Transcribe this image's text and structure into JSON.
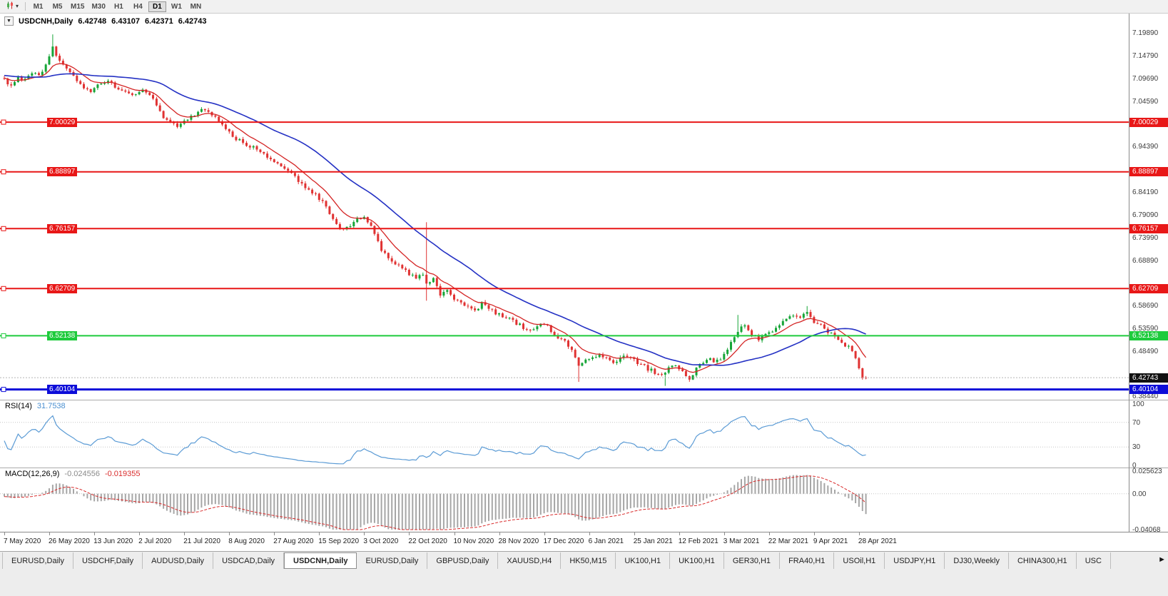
{
  "toolbar": {
    "timeframes": [
      "M1",
      "M5",
      "M15",
      "M30",
      "H1",
      "H4",
      "D1",
      "W1",
      "MN"
    ],
    "active_timeframe": "D1",
    "dropdown_glyph": "▾"
  },
  "chart": {
    "dropdown_glyph": "▼",
    "symbol_label": "USDCNH,Daily",
    "open": "6.42748",
    "high": "6.43107",
    "low": "6.42371",
    "close": "6.42743"
  },
  "price_axis": {
    "labels": [
      "7.19890",
      "7.14790",
      "7.09690",
      "7.04590",
      "6.94390",
      "6.84190",
      "6.79090",
      "6.73990",
      "6.68890",
      "6.58690",
      "6.53590",
      "6.48490",
      "6.38440"
    ]
  },
  "hlines": [
    {
      "label": "7.00029",
      "price": 7.00029,
      "color": "#e81717",
      "thickness": 2
    },
    {
      "label": "6.88897",
      "price": 6.88897,
      "color": "#e81717",
      "thickness": 2
    },
    {
      "label": "6.76157",
      "price": 6.76157,
      "color": "#e81717",
      "thickness": 2
    },
    {
      "label": "6.62709",
      "price": 6.62709,
      "color": "#e81717",
      "thickness": 2
    },
    {
      "label": "6.52138",
      "price": 6.52138,
      "color": "#1ecb3c",
      "thickness": 2
    },
    {
      "label": "6.40104",
      "price": 6.40104,
      "color": "#0d0dd9",
      "thickness": 3
    }
  ],
  "current_price": {
    "label": "6.42743",
    "price": 6.42743,
    "badge_color": "#111111"
  },
  "rsi": {
    "name": "RSI(14)",
    "value": "31.7538",
    "line_color": "#5b9bd5",
    "scale_labels": [
      "100",
      "70",
      "30",
      "0"
    ],
    "level_lines": [
      70,
      30
    ]
  },
  "macd": {
    "name": "MACD(12,26,9)",
    "value_main": "-0.024556",
    "value_signal": "-0.019355",
    "hist_color": "#a6a6a6",
    "signal_color": "#d92b2b",
    "scale_labels": [
      "0.025623",
      "0.00",
      "-0.04068"
    ]
  },
  "time_axis": [
    "7 May 2020",
    "26 May 2020",
    "13 Jun 2020",
    "2 Jul 2020",
    "21 Jul 2020",
    "8 Aug 2020",
    "27 Aug 2020",
    "15 Sep 2020",
    "3 Oct 2020",
    "22 Oct 2020",
    "10 Nov 2020",
    "28 Nov 2020",
    "17 Dec 2020",
    "6 Jan 2021",
    "25 Jan 2021",
    "12 Feb 2021",
    "3 Mar 2021",
    "22 Mar 2021",
    "9 Apr 2021",
    "28 Apr 2021"
  ],
  "tabs": {
    "items": [
      "EURUSD,Daily",
      "USDCHF,Daily",
      "AUDUSD,Daily",
      "USDCAD,Daily",
      "USDCNH,Daily",
      "EURUSD,Daily",
      "GBPUSD,Daily",
      "XAUUSD,H4",
      "HK50,M15",
      "UK100,H1",
      "UK100,H1",
      "GER30,H1",
      "FRA40,H1",
      "USOil,H1",
      "USDJPY,H1",
      "DJ30,Weekly",
      "CHINA300,H1",
      "USC"
    ],
    "active_index": 4,
    "scroll_glyph": "►"
  },
  "chart_data": {
    "type": "candlestick",
    "symbol": "USDCNH",
    "period": "Daily",
    "bars": 250,
    "y_range": [
      6.3844,
      7.1989
    ],
    "x_labels_every_bars": 13,
    "up_color": "#16a537",
    "down_color": "#e03232",
    "ohlc_last": {
      "open": 6.42748,
      "high": 6.43107,
      "low": 6.42371,
      "close": 6.42743
    },
    "support_resistance": [
      7.00029,
      6.88897,
      6.76157,
      6.62709,
      6.52138,
      6.40104
    ],
    "moving_averages": [
      {
        "type": "ema",
        "period": 10,
        "color": "#d42525"
      },
      {
        "type": "sma",
        "period": 34,
        "color": "#2431c4"
      }
    ],
    "indicators": [
      {
        "name": "RSI",
        "params": [
          14
        ],
        "last_value": 31.7538,
        "scale": [
          0,
          100
        ],
        "levels": [
          30,
          70
        ]
      },
      {
        "name": "MACD",
        "params": [
          12,
          26,
          9
        ],
        "last_main": -0.024556,
        "last_signal": -0.019355,
        "scale": [
          -0.04068,
          0.025623
        ]
      }
    ],
    "price_anchors": [
      [
        0,
        7.096
      ],
      [
        2,
        7.082
      ],
      [
        4,
        7.097
      ],
      [
        6,
        7.094
      ],
      [
        8,
        7.112
      ],
      [
        10,
        7.105
      ],
      [
        12,
        7.128
      ],
      [
        13,
        7.152
      ],
      [
        14,
        7.172
      ],
      [
        15,
        7.148
      ],
      [
        16,
        7.136
      ],
      [
        18,
        7.118
      ],
      [
        20,
        7.102
      ],
      [
        22,
        7.088
      ],
      [
        24,
        7.07
      ],
      [
        26,
        7.074
      ],
      [
        28,
        7.088
      ],
      [
        30,
        7.094
      ],
      [
        32,
        7.082
      ],
      [
        34,
        7.072
      ],
      [
        36,
        7.062
      ],
      [
        38,
        7.066
      ],
      [
        40,
        7.07
      ],
      [
        42,
        7.06
      ],
      [
        44,
        7.038
      ],
      [
        46,
        7.012
      ],
      [
        48,
        6.998
      ],
      [
        50,
        6.992
      ],
      [
        52,
        7.0
      ],
      [
        54,
        7.012
      ],
      [
        56,
        7.024
      ],
      [
        58,
        7.028
      ],
      [
        60,
        7.018
      ],
      [
        62,
        7.0
      ],
      [
        64,
        6.986
      ],
      [
        66,
        6.968
      ],
      [
        68,
        6.958
      ],
      [
        70,
        6.948
      ],
      [
        72,
        6.944
      ],
      [
        74,
        6.934
      ],
      [
        76,
        6.92
      ],
      [
        78,
        6.91
      ],
      [
        80,
        6.902
      ],
      [
        82,
        6.892
      ],
      [
        84,
        6.876
      ],
      [
        86,
        6.862
      ],
      [
        88,
        6.848
      ],
      [
        90,
        6.836
      ],
      [
        92,
        6.822
      ],
      [
        94,
        6.795
      ],
      [
        96,
        6.772
      ],
      [
        98,
        6.758
      ],
      [
        100,
        6.77
      ],
      [
        102,
        6.782
      ],
      [
        104,
        6.787
      ],
      [
        106,
        6.772
      ],
      [
        107,
        6.748
      ],
      [
        109,
        6.715
      ],
      [
        111,
        6.697
      ],
      [
        113,
        6.683
      ],
      [
        115,
        6.671
      ],
      [
        117,
        6.661
      ],
      [
        119,
        6.649
      ],
      [
        121,
        6.657
      ],
      [
        122,
        6.64
      ],
      [
        124,
        6.647
      ],
      [
        126,
        6.615
      ],
      [
        128,
        6.62
      ],
      [
        130,
        6.605
      ],
      [
        132,
        6.595
      ],
      [
        134,
        6.587
      ],
      [
        136,
        6.579
      ],
      [
        138,
        6.593
      ],
      [
        140,
        6.583
      ],
      [
        142,
        6.573
      ],
      [
        144,
        6.565
      ],
      [
        146,
        6.557
      ],
      [
        148,
        6.549
      ],
      [
        150,
        6.539
      ],
      [
        152,
        6.533
      ],
      [
        154,
        6.541
      ],
      [
        156,
        6.549
      ],
      [
        158,
        6.533
      ],
      [
        160,
        6.519
      ],
      [
        162,
        6.507
      ],
      [
        164,
        6.487
      ],
      [
        166,
        6.457
      ],
      [
        168,
        6.465
      ],
      [
        170,
        6.475
      ],
      [
        172,
        6.479
      ],
      [
        174,
        6.471
      ],
      [
        176,
        6.461
      ],
      [
        178,
        6.473
      ],
      [
        180,
        6.477
      ],
      [
        182,
        6.467
      ],
      [
        184,
        6.457
      ],
      [
        186,
        6.447
      ],
      [
        188,
        6.44
      ],
      [
        190,
        6.43
      ],
      [
        192,
        6.452
      ],
      [
        194,
        6.458
      ],
      [
        196,
        6.44
      ],
      [
        198,
        6.424
      ],
      [
        200,
        6.45
      ],
      [
        202,
        6.461
      ],
      [
        204,
        6.467
      ],
      [
        206,
        6.465
      ],
      [
        208,
        6.477
      ],
      [
        210,
        6.503
      ],
      [
        212,
        6.533
      ],
      [
        214,
        6.543
      ],
      [
        216,
        6.523
      ],
      [
        218,
        6.513
      ],
      [
        220,
        6.523
      ],
      [
        222,
        6.533
      ],
      [
        224,
        6.546
      ],
      [
        226,
        6.56
      ],
      [
        228,
        6.57
      ],
      [
        230,
        6.566
      ],
      [
        232,
        6.574
      ],
      [
        234,
        6.554
      ],
      [
        236,
        6.544
      ],
      [
        238,
        6.53
      ],
      [
        240,
        6.518
      ],
      [
        242,
        6.506
      ],
      [
        244,
        6.496
      ],
      [
        245,
        6.486
      ],
      [
        246,
        6.47
      ],
      [
        247,
        6.45
      ],
      [
        248,
        6.43
      ],
      [
        249,
        6.42743
      ]
    ],
    "wick_overrides": [
      {
        "i": 14,
        "h": 7.197
      },
      {
        "i": 122,
        "h": 6.776,
        "l": 6.6
      },
      {
        "i": 166,
        "l": 6.418
      },
      {
        "i": 191,
        "l": 6.409
      },
      {
        "i": 212,
        "h": 6.568
      },
      {
        "i": 232,
        "h": 6.588
      },
      {
        "i": 249,
        "o": 6.42748,
        "h": 6.43107,
        "l": 6.42371,
        "c": 6.42743
      }
    ]
  }
}
